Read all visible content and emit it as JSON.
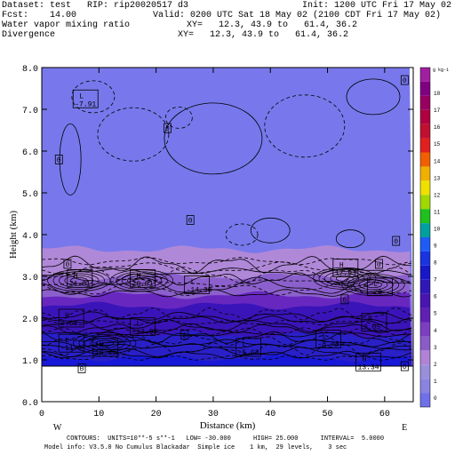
{
  "header": {
    "dataset_line": "Dataset: test   RIP: rip20020517 d3",
    "init_line": "Init: 1200 UTC Fri 17 May 02",
    "fcst_line": "Fcst:    14.00",
    "valid_line": "Valid: 0200 UTC Sat 18 May 02 (2100 CDT Fri 17 May 02)",
    "field1_name": "Water vapor mixing ratio",
    "field1_xy": "XY=   12.3, 43.9 to   61.4, 36.2",
    "field2_name": "Divergence",
    "field2_xy": "XY=   12.3, 43.9 to   61.4, 36.2"
  },
  "footer": {
    "contours_line": "CONTOURS:  UNITS=10**-5 s**-1   LOW= -30.000      HIGH= 25.000      INTERVAL=  5.0000",
    "model_line": "Model info: V3.5.0 No Cumulus Blackadar  Simple ice    1 km,  29 levels,    3 sec"
  },
  "colorbar": {
    "unit_label": "g kg-1",
    "colors": [
      "#7070e8",
      "#8a84e0",
      "#9a8fdc",
      "#b083d6",
      "#8a5cc8",
      "#7a40c0",
      "#6020b4",
      "#4a14b0",
      "#3018b8",
      "#1818c8",
      "#1a34e0",
      "#1e5cf4",
      "#00a0a0",
      "#20c020",
      "#a0d800",
      "#f0e000",
      "#f0b000",
      "#f06000",
      "#e02020",
      "#c01030",
      "#b00040",
      "#980060",
      "#800080",
      "#a020a0"
    ],
    "labels": [
      "0",
      "1",
      "2",
      "3",
      "4",
      "5",
      "6",
      "7",
      "8",
      "9",
      "10",
      "11",
      "12",
      "13",
      "14",
      "15",
      "16",
      "17",
      "18"
    ]
  },
  "chart_data": {
    "type": "heatmap",
    "title": "",
    "xlabel": "Distance (km)",
    "ylabel": "Height (km)",
    "xlim": [
      0,
      65
    ],
    "ylim": [
      0,
      8
    ],
    "x_ticks": [
      0,
      10,
      20,
      30,
      40,
      50,
      60
    ],
    "y_ticks": [
      0.0,
      1.0,
      2.0,
      3.0,
      4.0,
      5.0,
      6.0,
      7.0,
      8.0
    ],
    "x_end_labels": {
      "left": "W",
      "right": "E"
    },
    "shaded_field": "Water vapor mixing ratio",
    "contour_field": "Divergence",
    "terrain_height_km": 0.85,
    "moisture_layers": [
      {
        "top_km": 1.05,
        "color": "#1818d8"
      },
      {
        "top_km": 1.6,
        "color": "#2a20c8"
      },
      {
        "top_km": 2.3,
        "color": "#3a14b8"
      },
      {
        "top_km": 2.55,
        "color": "#6828c0"
      },
      {
        "top_km": 3.0,
        "color": "#8c60cc"
      },
      {
        "top_km": 3.65,
        "color": "#b088d8"
      },
      {
        "top_km": 8.0,
        "color": "#7878ec"
      }
    ],
    "annotations": [
      {
        "kind": "L",
        "value": "-7.91",
        "x": 7.5,
        "y": 7.25
      },
      {
        "kind": "H",
        "value": "21.01",
        "x": 6.5,
        "y": 2.95
      },
      {
        "kind": "H",
        "value": "20.01",
        "x": 17.5,
        "y": 2.95
      },
      {
        "kind": "L",
        "value": "-14.38",
        "x": 27,
        "y": 2.8
      },
      {
        "kind": "H",
        "value": "17.93",
        "x": 53,
        "y": 3.2
      },
      {
        "kind": "L",
        "value": "-20",
        "x": 59,
        "y": 2.75
      },
      {
        "kind": "H",
        "value": "2.64",
        "x": 5,
        "y": 2.0
      },
      {
        "kind": "L",
        "value": "-11.9",
        "x": 5,
        "y": 1.4
      },
      {
        "kind": "H",
        "value": "16.45",
        "x": 11,
        "y": 1.3
      },
      {
        "kind": "L",
        "value": "-13.88",
        "x": 17.5,
        "y": 1.8
      },
      {
        "kind": "L",
        "value": "-5.63",
        "x": 36,
        "y": 1.3
      },
      {
        "kind": "L",
        "value": "-8.48",
        "x": 50,
        "y": 1.5
      },
      {
        "kind": "H",
        "value": "9.05",
        "x": 58,
        "y": 1.9
      },
      {
        "kind": "H",
        "value": "13.34",
        "x": 57,
        "y": 0.95
      }
    ],
    "zero_labels": [
      {
        "x": 63.5,
        "y": 7.7
      },
      {
        "x": 22,
        "y": 6.55
      },
      {
        "x": 3,
        "y": 5.8
      },
      {
        "x": 26,
        "y": 4.35
      },
      {
        "x": 62,
        "y": 3.85
      },
      {
        "x": 4.5,
        "y": 3.3
      },
      {
        "x": 59,
        "y": 3.3
      },
      {
        "x": 53,
        "y": 2.45
      },
      {
        "x": 25,
        "y": 1.6
      },
      {
        "x": 7,
        "y": 0.8
      },
      {
        "x": 63.5,
        "y": 0.85
      }
    ]
  }
}
